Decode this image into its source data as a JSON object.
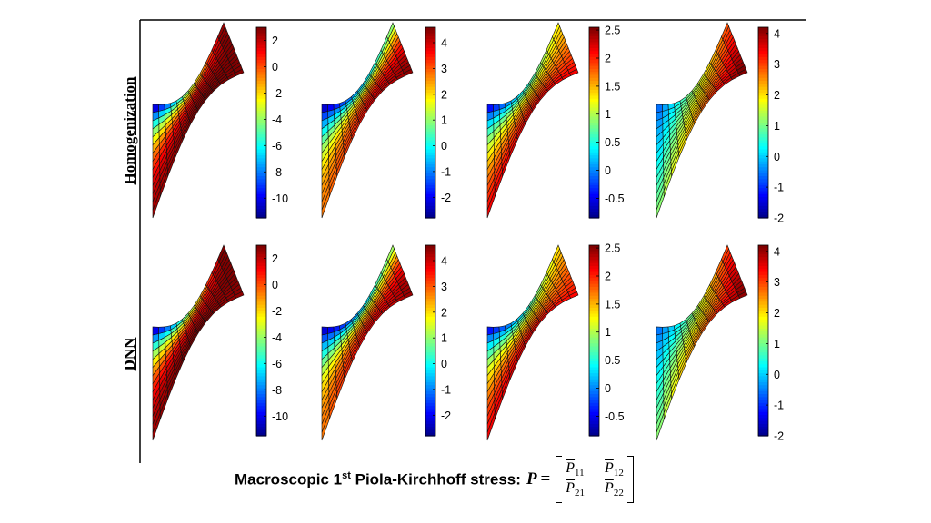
{
  "rows": [
    {
      "label": "Homogenization"
    },
    {
      "label": "DNN"
    }
  ],
  "panels": [
    {
      "component": "P11",
      "colorbar": {
        "min": -11.5,
        "max": 3.0,
        "ticks": [
          "2",
          "0",
          "-2",
          "-4",
          "-6",
          "-8",
          "-10"
        ]
      }
    },
    {
      "component": "P12",
      "colorbar": {
        "min": -2.8,
        "max": 4.6,
        "ticks": [
          "4",
          "3",
          "2",
          "1",
          "0",
          "-1",
          "-2"
        ]
      }
    },
    {
      "component": "P21",
      "colorbar": {
        "min": -0.85,
        "max": 2.55,
        "ticks": [
          "2.5",
          "2",
          "1.5",
          "1",
          "0.5",
          "0",
          "-0.5"
        ]
      }
    },
    {
      "component": "P22",
      "colorbar": {
        "min": -2.0,
        "max": 4.2,
        "ticks": [
          "4",
          "3",
          "2",
          "1",
          "0",
          "-1",
          "-2"
        ]
      }
    }
  ],
  "caption": {
    "text_before": "Macroscopic 1",
    "superscript": "st",
    "text_after": " Piola-Kirchhoff stress: ",
    "symbol": "P",
    "equals": "=",
    "matrix": [
      [
        "11",
        "12"
      ],
      [
        "21",
        "22"
      ]
    ]
  }
}
